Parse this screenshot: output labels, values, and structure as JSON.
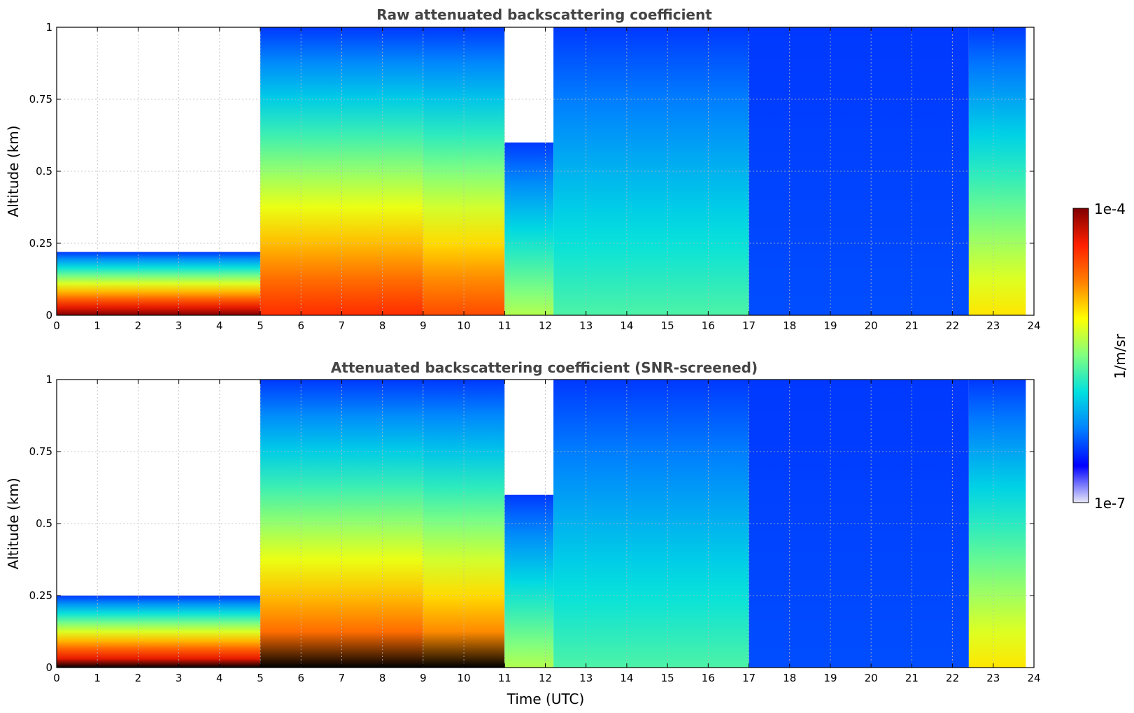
{
  "chart_data": [
    {
      "type": "heatmap",
      "title": "Raw attenuated backscattering coefficient",
      "xlabel": "",
      "ylabel": "Altitude (km)",
      "xlim": [
        0,
        24
      ],
      "ylim": [
        0,
        1
      ],
      "x_ticks": [
        "0",
        "1",
        "2",
        "3",
        "4",
        "5",
        "6",
        "7",
        "8",
        "9",
        "10",
        "11",
        "12",
        "13",
        "14",
        "15",
        "16",
        "17",
        "18",
        "19",
        "20",
        "21",
        "22",
        "23",
        "24"
      ],
      "y_ticks": [
        "0",
        "0.25",
        "0.5",
        "0.75",
        "1"
      ],
      "grid": true,
      "colorbar": "shared",
      "screened_black": false,
      "segments": [
        {
          "t0": 0.0,
          "t1": 5.0,
          "near_surface_level": 1.0,
          "layer_top_km": 0.22
        },
        {
          "t0": 5.0,
          "t1": 9.0,
          "near_surface_level": 0.86,
          "layer_top_km": 1.0
        },
        {
          "t0": 9.0,
          "t1": 11.0,
          "near_surface_level": 0.82,
          "layer_top_km": 1.0
        },
        {
          "t0": 11.0,
          "t1": 12.2,
          "near_surface_level": 0.55,
          "layer_top_km": 0.6
        },
        {
          "t0": 12.2,
          "t1": 17.0,
          "near_surface_level": 0.45,
          "layer_top_km": 1.0
        },
        {
          "t0": 17.0,
          "t1": 22.4,
          "near_surface_level": 0.2,
          "layer_top_km": 1.0
        },
        {
          "t0": 22.4,
          "t1": 23.8,
          "near_surface_level": 0.65,
          "layer_top_km": 1.0
        }
      ]
    },
    {
      "type": "heatmap",
      "title": "Attenuated backscattering coefficient (SNR-screened)",
      "xlabel": "Time (UTC)",
      "ylabel": "Altitude (km)",
      "xlim": [
        0,
        24
      ],
      "ylim": [
        0,
        1
      ],
      "x_ticks": [
        "0",
        "1",
        "2",
        "3",
        "4",
        "5",
        "6",
        "7",
        "8",
        "9",
        "10",
        "11",
        "12",
        "13",
        "14",
        "15",
        "16",
        "17",
        "18",
        "19",
        "20",
        "21",
        "22",
        "23",
        "24"
      ],
      "y_ticks": [
        "0",
        "0.25",
        "0.5",
        "0.75",
        "1"
      ],
      "grid": true,
      "colorbar": "shared",
      "screened_black": true,
      "segments": [
        {
          "t0": 0.0,
          "t1": 5.0,
          "near_surface_level": 1.0,
          "layer_top_km": 0.25
        },
        {
          "t0": 5.0,
          "t1": 9.0,
          "near_surface_level": 0.86,
          "layer_top_km": 1.0
        },
        {
          "t0": 9.0,
          "t1": 11.0,
          "near_surface_level": 0.82,
          "layer_top_km": 1.0
        },
        {
          "t0": 11.0,
          "t1": 12.2,
          "near_surface_level": 0.55,
          "layer_top_km": 0.6
        },
        {
          "t0": 12.2,
          "t1": 17.0,
          "near_surface_level": 0.45,
          "layer_top_km": 1.0
        },
        {
          "t0": 17.0,
          "t1": 22.4,
          "near_surface_level": 0.2,
          "layer_top_km": 1.0
        },
        {
          "t0": 22.4,
          "t1": 23.8,
          "near_surface_level": 0.65,
          "layer_top_km": 1.0
        }
      ]
    }
  ],
  "colorbar": {
    "label": "1/m/sr",
    "max_label": "1e-4",
    "min_label": "1e-7",
    "scale": "log",
    "colors": [
      "#e8e8f8",
      "#0000ff",
      "#0080ff",
      "#00e0e0",
      "#80ff80",
      "#ffff00",
      "#ff8000",
      "#ff2000",
      "#800000"
    ]
  }
}
